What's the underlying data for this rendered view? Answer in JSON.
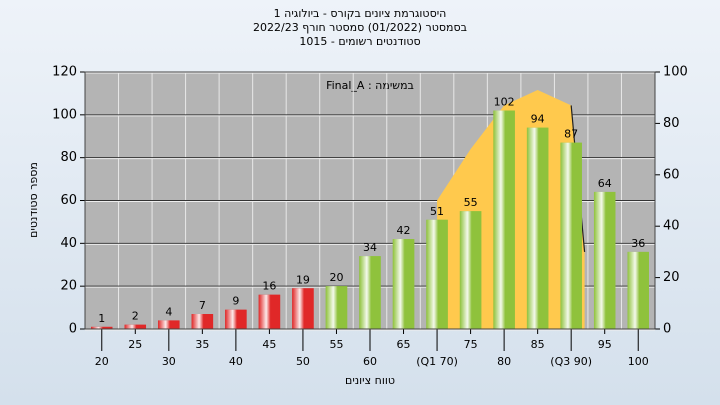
{
  "chart_data": {
    "type": "bar",
    "title_lines": [
      "היסטוגרמת ציונים בקורס - ביולוגיה 1",
      "בסמסטר  (01/2022)  סמסטר חורף 2022/23",
      "סטודנטים רשומים - 1015"
    ],
    "annotation": "במשימה : Final_A",
    "x_label": "טווח ציונים",
    "y_label": "מספר סטודנטים",
    "categories": [
      "20",
      "25",
      "30",
      "35",
      "40",
      "45",
      "50",
      "55",
      "60",
      "65",
      "(Q1 70)",
      "75",
      "80",
      "85",
      "(Q3 90)",
      "95",
      "100"
    ],
    "values": [
      1,
      2,
      4,
      7,
      9,
      16,
      19,
      20,
      34,
      42,
      51,
      55,
      102,
      94,
      87,
      64,
      36
    ],
    "colors": [
      "#e02828",
      "#e02828",
      "#e02828",
      "#e02828",
      "#e02828",
      "#e02828",
      "#e02828",
      "#8fc23c",
      "#8fc23c",
      "#8fc23c",
      "#8fc23c",
      "#8fc23c",
      "#8fc23c",
      "#8fc23c",
      "#8fc23c",
      "#8fc23c",
      "#8fc23c"
    ],
    "ylim": [
      0,
      120
    ],
    "yticks": [
      0,
      20,
      40,
      60,
      80,
      100,
      120
    ],
    "y2lim": [
      0,
      100
    ],
    "y2ticks": [
      0,
      20,
      40,
      60,
      80,
      100
    ],
    "grid": true,
    "overlay": {
      "type": "area",
      "axis": "y2",
      "x": [
        70,
        75,
        80,
        85,
        90,
        92
      ],
      "values": [
        50,
        70,
        87,
        93,
        87,
        30
      ],
      "color": "#ffc94d"
    }
  }
}
